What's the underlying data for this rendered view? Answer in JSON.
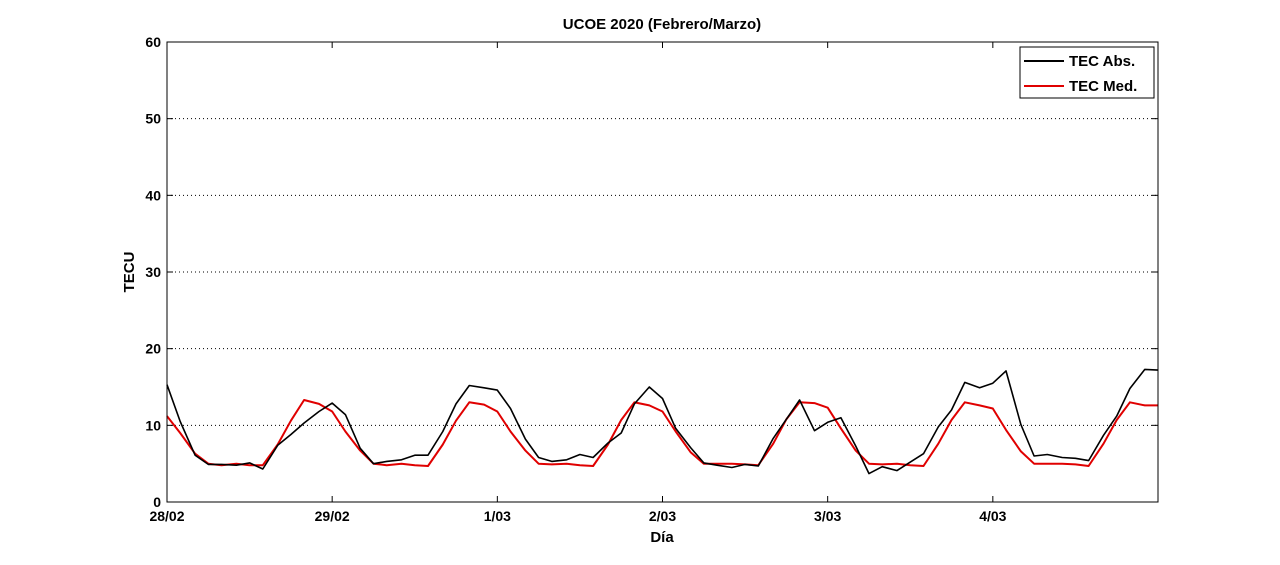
{
  "chart_data": {
    "type": "line",
    "title": "UCOE 2020 (Febrero/Marzo)",
    "xlabel": "Día",
    "ylabel": "TECU",
    "xlim": [
      0,
      6
    ],
    "ylim": [
      0,
      60
    ],
    "yticks": [
      0,
      10,
      20,
      30,
      40,
      50,
      60
    ],
    "xticks": [
      {
        "value": 0,
        "label": "28/02"
      },
      {
        "value": 1,
        "label": "29/02"
      },
      {
        "value": 2,
        "label": "1/03"
      },
      {
        "value": 3,
        "label": "2/03"
      },
      {
        "value": 4,
        "label": "3/03"
      },
      {
        "value": 5,
        "label": "4/03"
      }
    ],
    "grid": "horizontal dotted",
    "legend_position": "top-right",
    "series": [
      {
        "name": "TEC Abs.",
        "color": "#000000",
        "points": [
          [
            0.0,
            15.3
          ],
          [
            0.08,
            10.5
          ],
          [
            0.17,
            6.1
          ],
          [
            0.25,
            4.9
          ],
          [
            0.33,
            4.9
          ],
          [
            0.42,
            4.8
          ],
          [
            0.5,
            5.1
          ],
          [
            0.58,
            4.3
          ],
          [
            0.67,
            7.4
          ],
          [
            0.75,
            8.8
          ],
          [
            0.83,
            10.3
          ],
          [
            0.92,
            11.8
          ],
          [
            1.0,
            12.9
          ],
          [
            1.08,
            11.4
          ],
          [
            1.17,
            7.0
          ],
          [
            1.25,
            5.0
          ],
          [
            1.33,
            5.3
          ],
          [
            1.42,
            5.5
          ],
          [
            1.5,
            6.1
          ],
          [
            1.58,
            6.1
          ],
          [
            1.67,
            9.2
          ],
          [
            1.75,
            12.8
          ],
          [
            1.83,
            15.2
          ],
          [
            1.92,
            14.9
          ],
          [
            2.0,
            14.6
          ],
          [
            2.08,
            12.2
          ],
          [
            2.17,
            8.2
          ],
          [
            2.25,
            5.8
          ],
          [
            2.33,
            5.3
          ],
          [
            2.42,
            5.5
          ],
          [
            2.5,
            6.2
          ],
          [
            2.58,
            5.8
          ],
          [
            2.67,
            7.7
          ],
          [
            2.75,
            9.0
          ],
          [
            2.83,
            12.8
          ],
          [
            2.92,
            15.0
          ],
          [
            3.0,
            13.5
          ],
          [
            3.08,
            9.6
          ],
          [
            3.17,
            7.1
          ],
          [
            3.25,
            5.1
          ],
          [
            3.33,
            4.8
          ],
          [
            3.42,
            4.5
          ],
          [
            3.5,
            4.9
          ],
          [
            3.58,
            4.7
          ],
          [
            3.67,
            8.3
          ],
          [
            3.75,
            10.8
          ],
          [
            3.83,
            13.3
          ],
          [
            3.92,
            9.3
          ],
          [
            4.0,
            10.4
          ],
          [
            4.08,
            11.0
          ],
          [
            4.17,
            7.3
          ],
          [
            4.25,
            3.7
          ],
          [
            4.33,
            4.6
          ],
          [
            4.42,
            4.1
          ],
          [
            4.5,
            5.2
          ],
          [
            4.58,
            6.3
          ],
          [
            4.67,
            9.8
          ],
          [
            4.75,
            12.0
          ],
          [
            4.83,
            15.6
          ],
          [
            4.92,
            14.9
          ],
          [
            5.0,
            15.5
          ],
          [
            5.08,
            17.1
          ],
          [
            5.17,
            10.1
          ],
          [
            5.25,
            6.0
          ],
          [
            5.33,
            6.2
          ],
          [
            5.42,
            5.8
          ],
          [
            5.5,
            5.7
          ],
          [
            5.58,
            5.4
          ],
          [
            5.67,
            8.7
          ],
          [
            5.75,
            11.2
          ],
          [
            5.83,
            14.8
          ],
          [
            5.92,
            17.3
          ],
          [
            6.0,
            17.2
          ]
        ]
      },
      {
        "name": "TEC Med.",
        "color": "#e00000",
        "points": [
          [
            0.0,
            11.2
          ],
          [
            0.08,
            9.0
          ],
          [
            0.17,
            6.3
          ],
          [
            0.25,
            5.0
          ],
          [
            0.33,
            4.8
          ],
          [
            0.42,
            5.0
          ],
          [
            0.5,
            4.8
          ],
          [
            0.58,
            4.8
          ],
          [
            0.67,
            7.5
          ],
          [
            0.75,
            10.6
          ],
          [
            0.83,
            13.3
          ],
          [
            0.92,
            12.8
          ],
          [
            1.0,
            11.8
          ],
          [
            1.08,
            9.2
          ],
          [
            1.17,
            6.7
          ],
          [
            1.25,
            5.0
          ],
          [
            1.33,
            4.8
          ],
          [
            1.42,
            5.0
          ],
          [
            1.5,
            4.8
          ],
          [
            1.58,
            4.7
          ],
          [
            1.67,
            7.5
          ],
          [
            1.75,
            10.6
          ],
          [
            1.83,
            13.0
          ],
          [
            1.92,
            12.7
          ],
          [
            2.0,
            11.8
          ],
          [
            2.08,
            9.2
          ],
          [
            2.17,
            6.7
          ],
          [
            2.25,
            5.0
          ],
          [
            2.33,
            4.9
          ],
          [
            2.42,
            5.0
          ],
          [
            2.5,
            4.8
          ],
          [
            2.58,
            4.7
          ],
          [
            2.67,
            7.5
          ],
          [
            2.75,
            10.7
          ],
          [
            2.83,
            13.0
          ],
          [
            2.92,
            12.6
          ],
          [
            3.0,
            11.8
          ],
          [
            3.08,
            9.2
          ],
          [
            3.17,
            6.5
          ],
          [
            3.25,
            5.0
          ],
          [
            3.33,
            5.0
          ],
          [
            3.42,
            5.0
          ],
          [
            3.5,
            4.9
          ],
          [
            3.58,
            4.8
          ],
          [
            3.67,
            7.6
          ],
          [
            3.75,
            10.8
          ],
          [
            3.83,
            13.0
          ],
          [
            3.92,
            12.9
          ],
          [
            4.0,
            12.3
          ],
          [
            4.08,
            9.6
          ],
          [
            4.17,
            6.7
          ],
          [
            4.25,
            5.0
          ],
          [
            4.33,
            4.9
          ],
          [
            4.42,
            5.0
          ],
          [
            4.5,
            4.8
          ],
          [
            4.58,
            4.7
          ],
          [
            4.67,
            7.6
          ],
          [
            4.75,
            10.7
          ],
          [
            4.83,
            13.0
          ],
          [
            4.92,
            12.6
          ],
          [
            5.0,
            12.2
          ],
          [
            5.08,
            9.4
          ],
          [
            5.17,
            6.6
          ],
          [
            5.25,
            5.0
          ],
          [
            5.33,
            5.0
          ],
          [
            5.42,
            5.0
          ],
          [
            5.5,
            4.9
          ],
          [
            5.58,
            4.7
          ],
          [
            5.67,
            7.6
          ],
          [
            5.75,
            10.7
          ],
          [
            5.83,
            13.0
          ],
          [
            5.92,
            12.6
          ],
          [
            6.0,
            12.6
          ]
        ]
      }
    ]
  }
}
